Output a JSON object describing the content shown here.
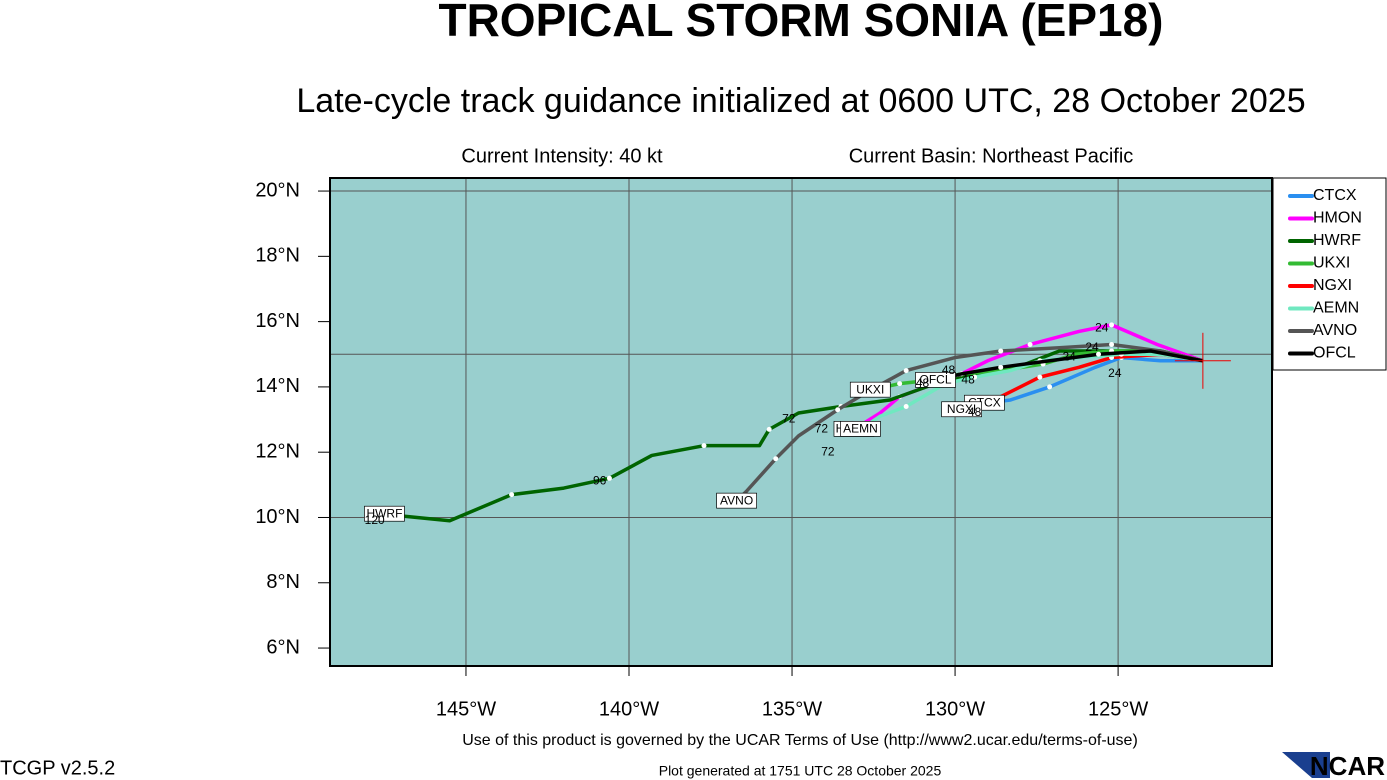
{
  "chart_data": {
    "type": "line",
    "title": "TROPICAL STORM SONIA (EP18)",
    "subtitle": "Late-cycle track guidance initialized at 0600 UTC, 28 October 2025",
    "info_left": "Current Intensity: 40 kt",
    "info_right": "Current Basin: Northeast Pacific",
    "footer": "Use of this product is governed by the UCAR Terms of Use (http://www2.ucar.edu/terms-of-use)",
    "version": "TCGP v2.5.2",
    "generated": "Plot generated at 1751 UTC  28 October 2025",
    "logo": "NCAR",
    "xlim": [
      -149.17,
      -120.28
    ],
    "ylim": [
      5.45,
      20.4
    ],
    "xticks": [
      {
        "value": -145,
        "label": "145°W"
      },
      {
        "value": -140,
        "label": "140°W"
      },
      {
        "value": -135,
        "label": "135°W"
      },
      {
        "value": -130,
        "label": "130°W"
      },
      {
        "value": -125,
        "label": "125°W"
      }
    ],
    "yticks": [
      {
        "value": 6,
        "label": "6°N"
      },
      {
        "value": 8,
        "label": "8°N"
      },
      {
        "value": 10,
        "label": "10°N"
      },
      {
        "value": 12,
        "label": "12°N"
      },
      {
        "value": 14,
        "label": "14°N"
      },
      {
        "value": 16,
        "label": "16°N"
      },
      {
        "value": 18,
        "label": "18°N"
      },
      {
        "value": 20,
        "label": "20°N"
      }
    ],
    "ygrid": [
      10,
      15,
      20
    ],
    "grid": true,
    "legend": "right",
    "background": "#99cfce",
    "series": [
      {
        "name": "CTCX",
        "color": "#2a8ff0",
        "x": [
          -122.4,
          -123.7,
          -124.9,
          -125.7,
          -127.1,
          -128.3,
          -129.1
        ],
        "values": [
          14.8,
          14.8,
          14.9,
          14.6,
          14.0,
          13.6,
          13.5
        ]
      },
      {
        "name": "HMON",
        "color": "#ff00ff",
        "x": [
          -122.4,
          -123.8,
          -125.2,
          -126.2,
          -127.7,
          -129.0,
          -130.0,
          -130.9,
          -131.7,
          -132.3,
          -133.1
        ],
        "values": [
          14.8,
          15.3,
          15.9,
          15.7,
          15.3,
          14.8,
          14.3,
          14.0,
          13.7,
          13.2,
          12.7
        ]
      },
      {
        "name": "HWRF",
        "color": "#006400",
        "x": [
          -122.4,
          -123.7,
          -125.2,
          -126.8,
          -128.1,
          -129.3,
          -130.6,
          -132.0,
          -133.5,
          -134.8,
          -135.7,
          -136.0,
          -137.7,
          -139.3,
          -140.6,
          -142.0,
          -143.6,
          -145.5,
          -147.5
        ],
        "values": [
          14.8,
          15.1,
          15.1,
          15.1,
          14.6,
          14.4,
          14.1,
          13.6,
          13.4,
          13.2,
          12.7,
          12.2,
          12.2,
          11.9,
          11.2,
          10.9,
          10.7,
          9.9,
          10.1
        ]
      },
      {
        "name": "UKXI",
        "color": "#33bb33",
        "x": [
          -122.4,
          -123.7,
          -125.2,
          -126.3,
          -127.3,
          -128.6,
          -129.8,
          -130.8,
          -131.7,
          -132.6
        ],
        "values": [
          14.8,
          15.1,
          15.1,
          15.0,
          14.7,
          14.5,
          14.4,
          14.2,
          14.1,
          13.9
        ]
      },
      {
        "name": "NGXI",
        "color": "#ff0000",
        "x": [
          -122.4,
          -123.7,
          -125.2,
          -126.2,
          -127.4,
          -128.6,
          -129.8
        ],
        "values": [
          14.8,
          15.0,
          14.9,
          14.6,
          14.3,
          13.7,
          13.3
        ]
      },
      {
        "name": "AEMN",
        "color": "#70e8c0",
        "x": [
          -122.4,
          -123.7,
          -124.9,
          -126.2,
          -127.4,
          -128.3,
          -129.4,
          -130.3,
          -131.5,
          -132.3,
          -132.9
        ],
        "values": [
          14.8,
          15.0,
          15.0,
          14.9,
          14.8,
          14.5,
          14.3,
          14.1,
          13.4,
          13.1,
          12.7
        ]
      },
      {
        "name": "AVNO",
        "color": "#555555",
        "x": [
          -122.4,
          -123.7,
          -125.2,
          -126.8,
          -128.6,
          -130.0,
          -131.5,
          -132.6,
          -133.6,
          -134.8,
          -135.5,
          -136.4,
          -136.7
        ],
        "values": [
          14.8,
          15.1,
          15.3,
          15.2,
          15.1,
          14.9,
          14.5,
          13.9,
          13.3,
          12.5,
          11.8,
          10.8,
          10.5
        ]
      },
      {
        "name": "OFCL",
        "color": "#000000",
        "x": [
          -122.4,
          -124.0,
          -125.6,
          -127.1,
          -128.6,
          -129.8,
          -130.6
        ],
        "values": [
          14.8,
          15.1,
          15.0,
          14.8,
          14.6,
          14.4,
          14.2
        ]
      }
    ],
    "hour_labels": [
      {
        "x": -147.8,
        "y": 9.9,
        "label": "120"
      },
      {
        "x": -140.9,
        "y": 11.1,
        "label": "96"
      },
      {
        "x": -135.1,
        "y": 13.0,
        "label": "72"
      },
      {
        "x": -134.1,
        "y": 12.7,
        "label": "72"
      },
      {
        "x": -133.9,
        "y": 12.0,
        "label": "72"
      },
      {
        "x": -125.5,
        "y": 15.8,
        "label": "24"
      },
      {
        "x": -125.1,
        "y": 14.4,
        "label": "24"
      },
      {
        "x": -129.4,
        "y": 13.2,
        "label": "48"
      },
      {
        "x": -131.0,
        "y": 14.1,
        "label": "48"
      },
      {
        "x": -130.2,
        "y": 14.5,
        "label": "48"
      },
      {
        "x": -129.6,
        "y": 14.2,
        "label": "48"
      },
      {
        "x": -126.5,
        "y": 14.9,
        "label": "24"
      },
      {
        "x": -125.8,
        "y": 15.2,
        "label": "24"
      }
    ]
  }
}
